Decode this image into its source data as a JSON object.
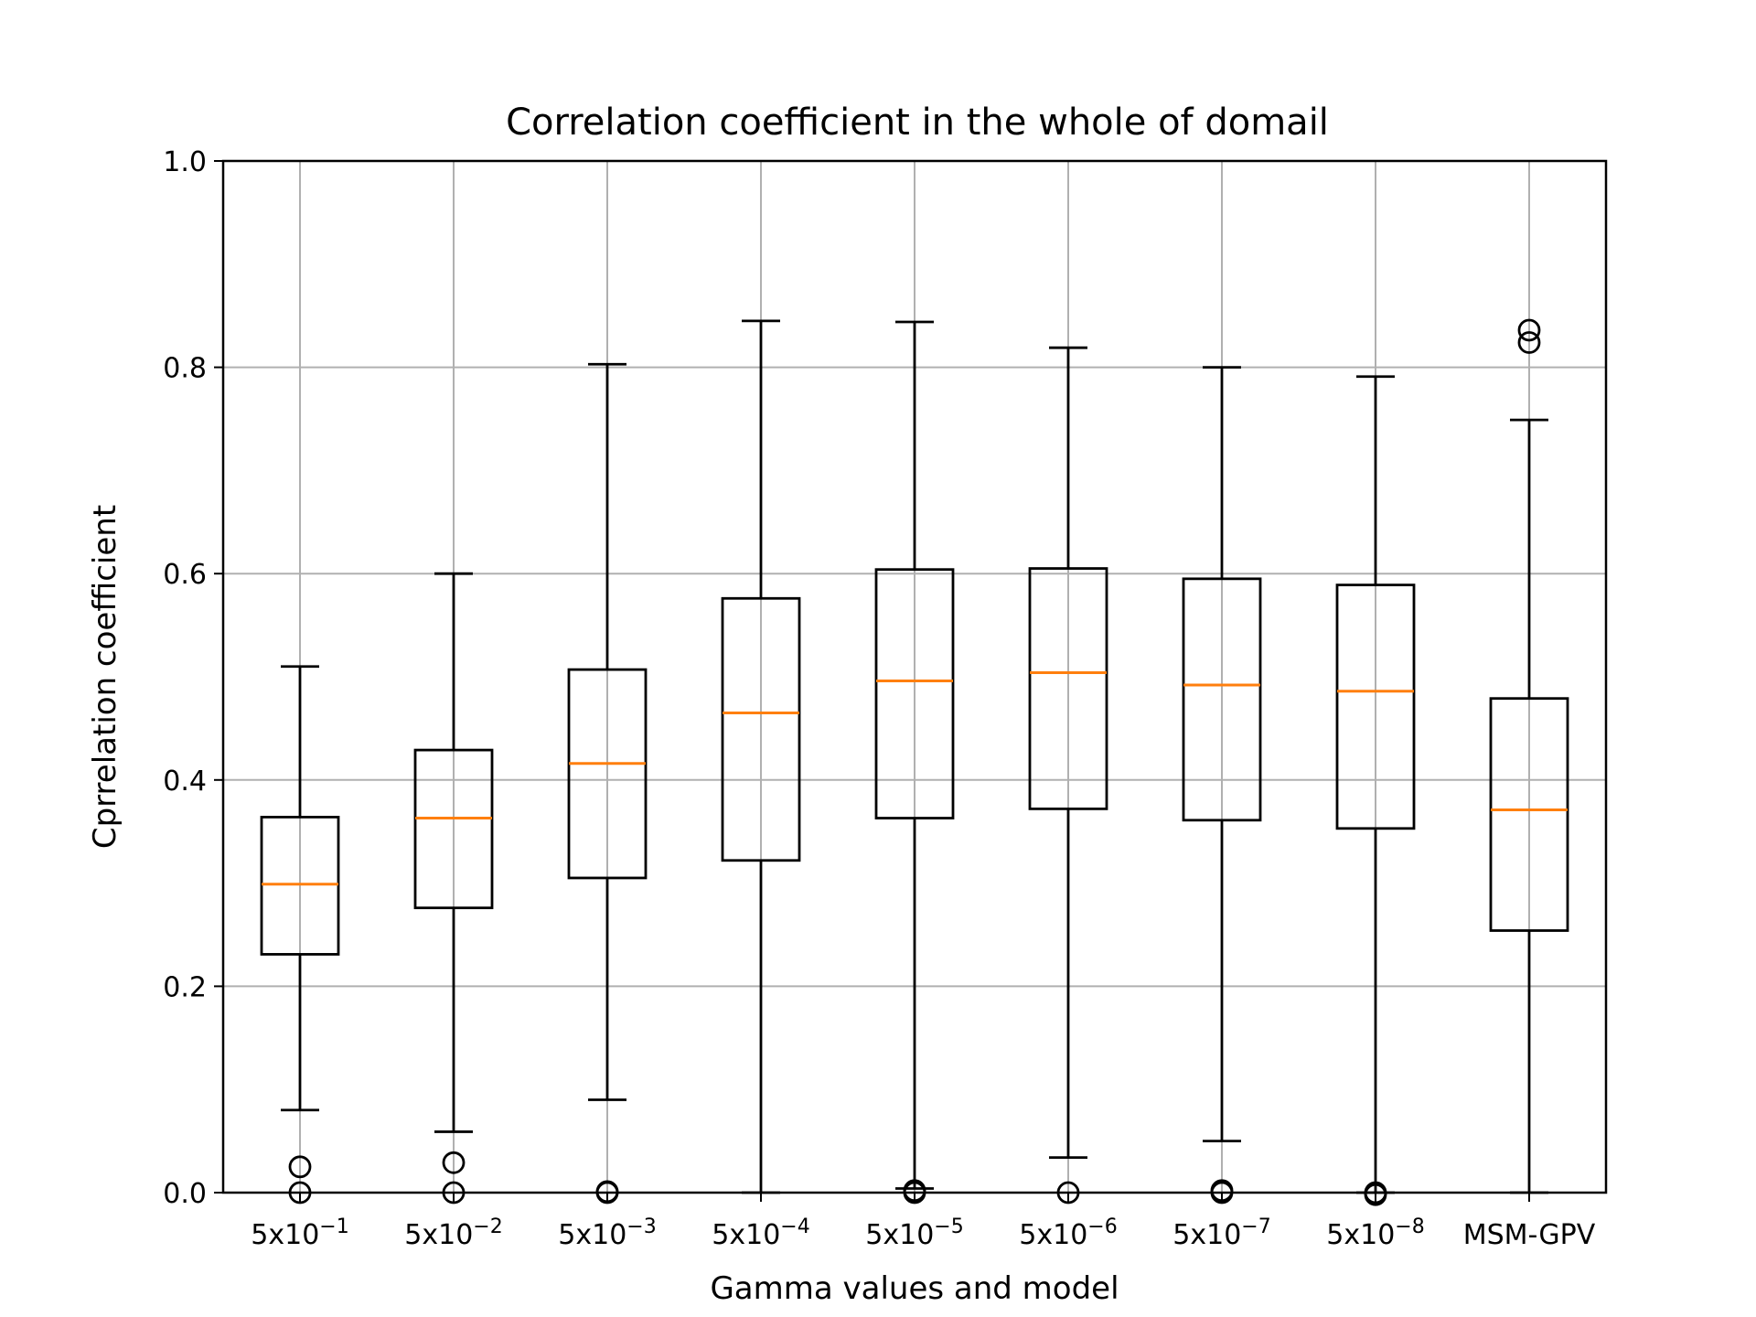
{
  "chart_data": {
    "type": "box",
    "title": "Correlation coefficient in the whole of domail",
    "xlabel": "Gamma values and model",
    "ylabel": "Cprrelation coefficient",
    "ylim": [
      0.0,
      1.0
    ],
    "yticks": [
      "0.0",
      "0.2",
      "0.4",
      "0.6",
      "0.8",
      "1.0"
    ],
    "grid": true,
    "colors": {
      "box": "#000000",
      "median": "#ff7f0e",
      "grid": "#b0b0b0"
    },
    "categories": [
      {
        "base": "5x10",
        "exp": "−1"
      },
      {
        "base": "5x10",
        "exp": "−2"
      },
      {
        "base": "5x10",
        "exp": "−3"
      },
      {
        "base": "5x10",
        "exp": "−4"
      },
      {
        "base": "5x10",
        "exp": "−5"
      },
      {
        "base": "5x10",
        "exp": "−6"
      },
      {
        "base": "5x10",
        "exp": "−7"
      },
      {
        "base": "5x10",
        "exp": "−8"
      },
      {
        "base": "MSM-GPV",
        "exp": ""
      }
    ],
    "boxes": [
      {
        "whislo": 0.08,
        "q1": 0.231,
        "median": 0.299,
        "q3": 0.364,
        "whishi": 0.51,
        "fliers": [
          0.025,
          0.0
        ]
      },
      {
        "whislo": 0.059,
        "q1": 0.276,
        "median": 0.363,
        "q3": 0.429,
        "whishi": 0.6,
        "fliers": [
          0.029,
          0.0
        ]
      },
      {
        "whislo": 0.09,
        "q1": 0.305,
        "median": 0.416,
        "q3": 0.507,
        "whishi": 0.803,
        "fliers": [
          0.001,
          0.0
        ]
      },
      {
        "whislo": 0.0,
        "q1": 0.322,
        "median": 0.465,
        "q3": 0.576,
        "whishi": 0.845,
        "fliers": []
      },
      {
        "whislo": 0.004,
        "q1": 0.363,
        "median": 0.496,
        "q3": 0.604,
        "whishi": 0.844,
        "fliers": [
          0.002,
          0.0
        ]
      },
      {
        "whislo": 0.034,
        "q1": 0.372,
        "median": 0.504,
        "q3": 0.605,
        "whishi": 0.819,
        "fliers": [
          0.0
        ]
      },
      {
        "whislo": 0.05,
        "q1": 0.361,
        "median": 0.492,
        "q3": 0.595,
        "whishi": 0.8,
        "fliers": [
          0.002,
          0.0
        ]
      },
      {
        "whislo": 0.0,
        "q1": 0.353,
        "median": 0.486,
        "q3": 0.589,
        "whishi": 0.791,
        "fliers": [
          0.0,
          -0.002
        ]
      },
      {
        "whislo": 0.0,
        "q1": 0.254,
        "median": 0.371,
        "q3": 0.479,
        "whishi": 0.749,
        "fliers": [
          0.836,
          0.824
        ]
      }
    ]
  }
}
